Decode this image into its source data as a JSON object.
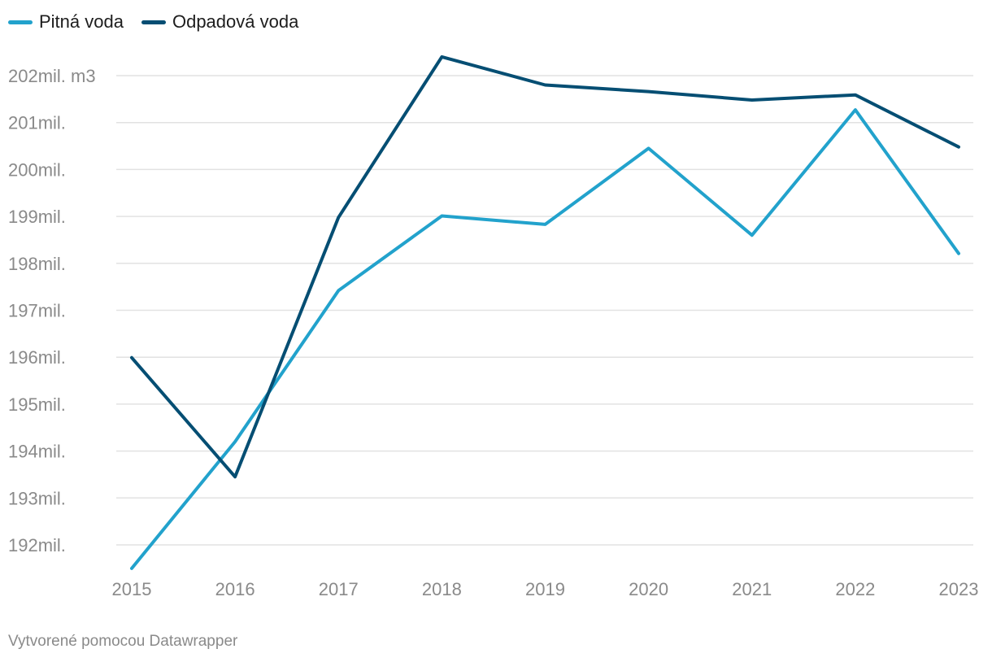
{
  "chart_data": {
    "type": "line",
    "title": "",
    "xlabel": "",
    "ylabel": "",
    "categories": [
      "2015",
      "2016",
      "2017",
      "2018",
      "2019",
      "2020",
      "2021",
      "2022",
      "2023"
    ],
    "series": [
      {
        "name": "Pitná voda",
        "color": "#22a2cc",
        "values": [
          191.5,
          194.2,
          197.42,
          199.01,
          198.83,
          200.45,
          198.6,
          201.27,
          198.21
        ]
      },
      {
        "name": "Odpadová voda",
        "color": "#054e73",
        "values": [
          195.99,
          193.45,
          198.98,
          202.4,
          201.8,
          201.66,
          201.48,
          201.59,
          200.48
        ]
      }
    ],
    "ylim": [
      191.4,
      202.6
    ],
    "yticks": [
      192,
      193,
      194,
      195,
      196,
      197,
      198,
      199,
      200,
      201,
      202
    ],
    "ytick_labels": [
      "192mil.",
      "193mil.",
      "194mil.",
      "195mil.",
      "196mil.",
      "197mil.",
      "198mil.",
      "199mil.",
      "200mil.",
      "201mil.",
      "202mil. m3"
    ],
    "grid": true,
    "legend": "top-left"
  },
  "footer": {
    "credit": "Vytvorené pomocou Datawrapper"
  }
}
